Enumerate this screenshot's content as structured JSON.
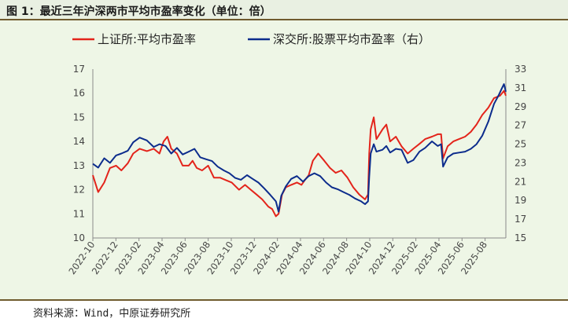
{
  "header": {
    "title": "图 1：最近三年沪深两市平均市盈率变化（单位：倍）"
  },
  "footer": {
    "source": "资料来源：Wind，中原证券研究所"
  },
  "colors": {
    "sse": "#e3241b",
    "szse": "#0c2c8c",
    "background": "#eef6e6",
    "rule": "#6f5b2e"
  },
  "chart_data": {
    "type": "line",
    "legend_position": "top",
    "grid": false,
    "xlabels": [
      "2022-10",
      "2022-12",
      "2023-02",
      "2023-04",
      "2023-06",
      "2023-08",
      "2023-10",
      "2023-12",
      "2024-02",
      "2024-04",
      "2024-06",
      "2024-08",
      "2024-10",
      "2024-12",
      "2025-02",
      "2025-04",
      "2025-06",
      "2025-08"
    ],
    "x_range": [
      "2022-10-01",
      "2025-09-20"
    ],
    "y_left": {
      "ticks": [
        10,
        11,
        12,
        13,
        14,
        15,
        16,
        17
      ],
      "range": [
        10,
        17
      ]
    },
    "y_right": {
      "ticks": [
        15,
        17,
        19,
        21,
        23,
        25,
        27,
        29,
        31,
        33
      ],
      "range": [
        15,
        33
      ]
    },
    "series": [
      {
        "name": "上证所:平均市盈率",
        "axis": "left",
        "color": "#e3241b",
        "points": [
          [
            "2022-10-01",
            12.6
          ],
          [
            "2022-10-15",
            11.9
          ],
          [
            "2022-10-31",
            12.3
          ],
          [
            "2022-11-15",
            12.9
          ],
          [
            "2022-12-01",
            13.0
          ],
          [
            "2022-12-15",
            12.8
          ],
          [
            "2023-01-01",
            13.1
          ],
          [
            "2023-01-15",
            13.5
          ],
          [
            "2023-02-01",
            13.7
          ],
          [
            "2023-02-20",
            13.6
          ],
          [
            "2023-03-10",
            13.7
          ],
          [
            "2023-03-25",
            13.5
          ],
          [
            "2023-04-05",
            14.0
          ],
          [
            "2023-04-15",
            14.2
          ],
          [
            "2023-04-25",
            13.7
          ],
          [
            "2023-05-10",
            13.5
          ],
          [
            "2023-05-25",
            13.0
          ],
          [
            "2023-06-10",
            13.0
          ],
          [
            "2023-06-20",
            13.2
          ],
          [
            "2023-07-01",
            12.9
          ],
          [
            "2023-07-15",
            12.8
          ],
          [
            "2023-07-31",
            13.0
          ],
          [
            "2023-08-15",
            12.5
          ],
          [
            "2023-08-31",
            12.5
          ],
          [
            "2023-09-15",
            12.4
          ],
          [
            "2023-10-01",
            12.3
          ],
          [
            "2023-10-20",
            12.0
          ],
          [
            "2023-11-05",
            12.2
          ],
          [
            "2023-11-20",
            12.0
          ],
          [
            "2023-12-05",
            11.8
          ],
          [
            "2023-12-20",
            11.6
          ],
          [
            "2024-01-05",
            11.3
          ],
          [
            "2024-01-15",
            11.2
          ],
          [
            "2024-01-25",
            10.9
          ],
          [
            "2024-02-01",
            11.0
          ],
          [
            "2024-02-10",
            11.8
          ],
          [
            "2024-02-20",
            12.1
          ],
          [
            "2024-03-05",
            12.2
          ],
          [
            "2024-03-20",
            12.3
          ],
          [
            "2024-04-01",
            12.2
          ],
          [
            "2024-04-10",
            12.4
          ],
          [
            "2024-04-20",
            12.6
          ],
          [
            "2024-05-01",
            13.2
          ],
          [
            "2024-05-15",
            13.5
          ],
          [
            "2024-05-31",
            13.2
          ],
          [
            "2024-06-15",
            12.9
          ],
          [
            "2024-06-30",
            12.7
          ],
          [
            "2024-07-15",
            12.8
          ],
          [
            "2024-07-31",
            12.5
          ],
          [
            "2024-08-15",
            12.1
          ],
          [
            "2024-08-31",
            11.8
          ],
          [
            "2024-09-15",
            11.6
          ],
          [
            "2024-09-23",
            11.8
          ],
          [
            "2024-09-26",
            13.5
          ],
          [
            "2024-09-30",
            14.5
          ],
          [
            "2024-10-08",
            15.0
          ],
          [
            "2024-10-15",
            14.1
          ],
          [
            "2024-10-31",
            14.5
          ],
          [
            "2024-11-10",
            14.7
          ],
          [
            "2024-11-20",
            14.0
          ],
          [
            "2024-12-05",
            14.2
          ],
          [
            "2024-12-20",
            13.8
          ],
          [
            "2025-01-05",
            13.5
          ],
          [
            "2025-01-20",
            13.7
          ],
          [
            "2025-02-05",
            13.9
          ],
          [
            "2025-02-20",
            14.1
          ],
          [
            "2025-03-10",
            14.2
          ],
          [
            "2025-03-25",
            14.3
          ],
          [
            "2025-04-03",
            14.3
          ],
          [
            "2025-04-08",
            13.3
          ],
          [
            "2025-04-20",
            13.8
          ],
          [
            "2025-05-05",
            14.0
          ],
          [
            "2025-05-20",
            14.1
          ],
          [
            "2025-06-05",
            14.2
          ],
          [
            "2025-06-20",
            14.4
          ],
          [
            "2025-07-05",
            14.7
          ],
          [
            "2025-07-20",
            15.1
          ],
          [
            "2025-08-05",
            15.4
          ],
          [
            "2025-08-20",
            15.8
          ],
          [
            "2025-09-05",
            15.9
          ],
          [
            "2025-09-15",
            16.1
          ],
          [
            "2025-09-20",
            15.9
          ]
        ]
      },
      {
        "name": "深交所:股票平均市盈率（右）",
        "axis": "right",
        "color": "#0c2c8c",
        "points": [
          [
            "2022-10-01",
            22.9
          ],
          [
            "2022-10-15",
            22.5
          ],
          [
            "2022-10-31",
            23.5
          ],
          [
            "2022-11-15",
            23.0
          ],
          [
            "2022-12-01",
            23.8
          ],
          [
            "2022-12-15",
            24.0
          ],
          [
            "2023-01-01",
            24.3
          ],
          [
            "2023-01-15",
            25.2
          ],
          [
            "2023-02-01",
            25.7
          ],
          [
            "2023-02-20",
            25.4
          ],
          [
            "2023-03-10",
            24.7
          ],
          [
            "2023-03-25",
            25.0
          ],
          [
            "2023-04-10",
            24.8
          ],
          [
            "2023-04-25",
            24.0
          ],
          [
            "2023-05-10",
            24.6
          ],
          [
            "2023-05-25",
            23.9
          ],
          [
            "2023-06-10",
            24.2
          ],
          [
            "2023-06-25",
            24.5
          ],
          [
            "2023-07-10",
            23.6
          ],
          [
            "2023-07-25",
            23.4
          ],
          [
            "2023-08-10",
            23.2
          ],
          [
            "2023-08-25",
            22.6
          ],
          [
            "2023-09-10",
            22.2
          ],
          [
            "2023-09-25",
            21.9
          ],
          [
            "2023-10-10",
            21.4
          ],
          [
            "2023-10-25",
            21.2
          ],
          [
            "2023-11-10",
            21.7
          ],
          [
            "2023-11-25",
            21.3
          ],
          [
            "2023-12-10",
            20.9
          ],
          [
            "2023-12-25",
            20.3
          ],
          [
            "2024-01-10",
            19.6
          ],
          [
            "2024-01-25",
            18.9
          ],
          [
            "2024-02-01",
            17.8
          ],
          [
            "2024-02-08",
            19.5
          ],
          [
            "2024-02-20",
            20.5
          ],
          [
            "2024-03-05",
            21.3
          ],
          [
            "2024-03-20",
            21.6
          ],
          [
            "2024-04-05",
            21.0
          ],
          [
            "2024-04-20",
            21.6
          ],
          [
            "2024-05-05",
            21.9
          ],
          [
            "2024-05-20",
            21.6
          ],
          [
            "2024-06-05",
            20.9
          ],
          [
            "2024-06-20",
            20.4
          ],
          [
            "2024-07-05",
            20.2
          ],
          [
            "2024-07-20",
            19.9
          ],
          [
            "2024-08-05",
            19.6
          ],
          [
            "2024-08-20",
            19.2
          ],
          [
            "2024-09-05",
            18.9
          ],
          [
            "2024-09-15",
            18.6
          ],
          [
            "2024-09-23",
            18.9
          ],
          [
            "2024-09-26",
            21.5
          ],
          [
            "2024-09-30",
            24.0
          ],
          [
            "2024-10-08",
            25.0
          ],
          [
            "2024-10-15",
            24.2
          ],
          [
            "2024-10-31",
            24.4
          ],
          [
            "2024-11-10",
            24.8
          ],
          [
            "2024-11-20",
            24.1
          ],
          [
            "2024-12-05",
            24.5
          ],
          [
            "2024-12-20",
            24.4
          ],
          [
            "2025-01-05",
            23.0
          ],
          [
            "2025-01-20",
            23.3
          ],
          [
            "2025-02-05",
            24.2
          ],
          [
            "2025-02-20",
            24.6
          ],
          [
            "2025-03-10",
            25.3
          ],
          [
            "2025-03-25",
            24.8
          ],
          [
            "2025-04-03",
            25.0
          ],
          [
            "2025-04-08",
            22.6
          ],
          [
            "2025-04-20",
            23.6
          ],
          [
            "2025-05-05",
            24.0
          ],
          [
            "2025-05-20",
            24.1
          ],
          [
            "2025-06-05",
            24.2
          ],
          [
            "2025-06-20",
            24.5
          ],
          [
            "2025-07-05",
            25.0
          ],
          [
            "2025-07-20",
            25.9
          ],
          [
            "2025-08-05",
            27.4
          ],
          [
            "2025-08-20",
            29.3
          ],
          [
            "2025-09-01",
            30.2
          ],
          [
            "2025-09-10",
            31.0
          ],
          [
            "2025-09-15",
            31.4
          ],
          [
            "2025-09-20",
            30.6
          ]
        ]
      }
    ]
  }
}
